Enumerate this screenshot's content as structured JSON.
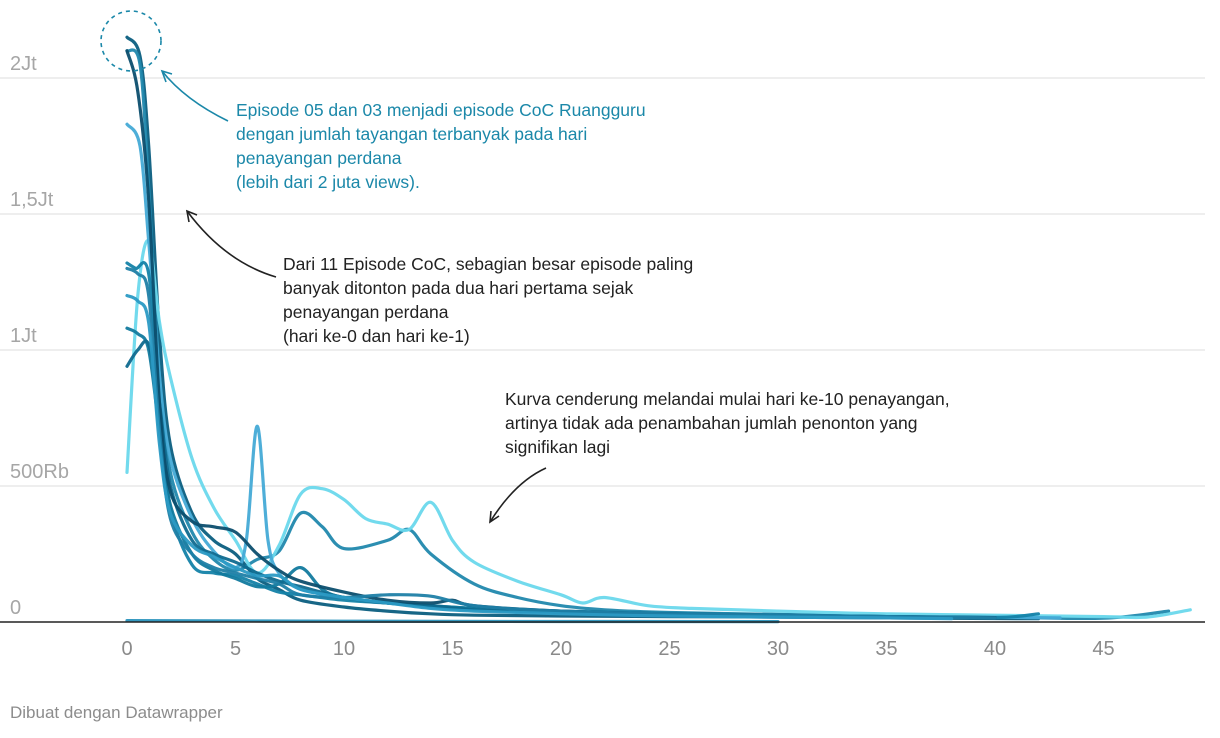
{
  "chart_data": {
    "type": "line",
    "title": "",
    "xlabel": "",
    "ylabel": "",
    "xlim": [
      0,
      49
    ],
    "ylim": [
      0,
      2000000
    ],
    "grid": true,
    "x_ticks": [
      0,
      5,
      10,
      15,
      20,
      25,
      30,
      35,
      40,
      45
    ],
    "y_ticks": [
      {
        "value": 0,
        "label": "0"
      },
      {
        "value": 500000,
        "label": "500Rb"
      },
      {
        "value": 1000000,
        "label": "1Jt"
      },
      {
        "value": 1500000,
        "label": "1,5Jt"
      },
      {
        "value": 2000000,
        "label": "2Jt"
      }
    ],
    "series": [
      {
        "color": "#0b5e80",
        "points": [
          [
            0,
            2150000
          ],
          [
            0.6,
            2080000
          ],
          [
            1,
            1750000
          ],
          [
            1.5,
            1050000
          ],
          [
            2,
            650000
          ],
          [
            3,
            400000
          ],
          [
            4,
            300000
          ],
          [
            5,
            250000
          ],
          [
            6,
            160000
          ],
          [
            7,
            120000
          ],
          [
            8,
            80000
          ],
          [
            10,
            55000
          ],
          [
            12,
            40000
          ],
          [
            14,
            30000
          ],
          [
            16,
            25000
          ],
          [
            20,
            22000
          ],
          [
            25,
            20000
          ],
          [
            30,
            18000
          ],
          [
            35,
            15000
          ],
          [
            40,
            13000
          ],
          [
            42,
            12000
          ]
        ]
      },
      {
        "color": "#2188ad",
        "points": [
          [
            0,
            2100000
          ],
          [
            0.6,
            2050000
          ],
          [
            1,
            1600000
          ],
          [
            1.5,
            900000
          ],
          [
            2,
            550000
          ],
          [
            3,
            330000
          ],
          [
            4,
            230000
          ],
          [
            5,
            190000
          ],
          [
            6,
            230000
          ],
          [
            7,
            260000
          ],
          [
            8,
            400000
          ],
          [
            9,
            350000
          ],
          [
            10,
            270000
          ],
          [
            12,
            300000
          ],
          [
            13,
            340000
          ],
          [
            14,
            250000
          ],
          [
            16,
            140000
          ],
          [
            18,
            90000
          ],
          [
            20,
            60000
          ],
          [
            22,
            45000
          ],
          [
            25,
            35000
          ],
          [
            30,
            28000
          ],
          [
            35,
            22000
          ],
          [
            40,
            18000
          ],
          [
            45,
            14000
          ],
          [
            48,
            40000
          ]
        ]
      },
      {
        "color": "#6ad8ec",
        "points": [
          [
            0,
            550000
          ],
          [
            0.5,
            1200000
          ],
          [
            1,
            1400000
          ],
          [
            1.5,
            1100000
          ],
          [
            2,
            900000
          ],
          [
            3,
            600000
          ],
          [
            4,
            420000
          ],
          [
            5,
            300000
          ],
          [
            6,
            180000
          ],
          [
            7,
            280000
          ],
          [
            8,
            470000
          ],
          [
            9,
            490000
          ],
          [
            10,
            450000
          ],
          [
            11,
            380000
          ],
          [
            12,
            360000
          ],
          [
            13,
            340000
          ],
          [
            14,
            440000
          ],
          [
            15,
            300000
          ],
          [
            16,
            220000
          ],
          [
            18,
            150000
          ],
          [
            20,
            100000
          ],
          [
            21,
            70000
          ],
          [
            22,
            90000
          ],
          [
            24,
            60000
          ],
          [
            26,
            50000
          ],
          [
            30,
            40000
          ],
          [
            35,
            30000
          ],
          [
            40,
            25000
          ],
          [
            45,
            20000
          ],
          [
            47,
            18000
          ],
          [
            49,
            45000
          ]
        ]
      },
      {
        "color": "#45aad6",
        "points": [
          [
            0,
            1830000
          ],
          [
            0.6,
            1750000
          ],
          [
            1,
            1400000
          ],
          [
            1.5,
            900000
          ],
          [
            2,
            600000
          ],
          [
            3,
            380000
          ],
          [
            4,
            260000
          ],
          [
            5,
            200000
          ],
          [
            5.5,
            300000
          ],
          [
            6,
            720000
          ],
          [
            6.5,
            300000
          ],
          [
            7,
            180000
          ],
          [
            8,
            120000
          ],
          [
            10,
            90000
          ],
          [
            12,
            70000
          ],
          [
            14,
            55000
          ],
          [
            16,
            45000
          ],
          [
            20,
            35000
          ],
          [
            25,
            30000
          ],
          [
            30,
            25000
          ],
          [
            35,
            20000
          ],
          [
            40,
            18000
          ],
          [
            43,
            15000
          ]
        ]
      },
      {
        "color": "#1482a8",
        "points": [
          [
            0,
            1320000
          ],
          [
            0.4,
            1300000
          ],
          [
            1,
            1280000
          ],
          [
            1.5,
            800000
          ],
          [
            2,
            420000
          ],
          [
            3,
            210000
          ],
          [
            4,
            180000
          ],
          [
            5,
            170000
          ],
          [
            6,
            140000
          ],
          [
            7,
            110000
          ],
          [
            8,
            100000
          ],
          [
            10,
            80000
          ],
          [
            12,
            70000
          ],
          [
            14,
            60000
          ],
          [
            16,
            50000
          ],
          [
            20,
            40000
          ],
          [
            25,
            32000
          ],
          [
            30,
            26000
          ],
          [
            35,
            20000
          ],
          [
            40,
            16000
          ],
          [
            42,
            30000
          ]
        ]
      },
      {
        "color": "#127a9e",
        "points": [
          [
            0,
            1080000
          ],
          [
            0.5,
            1060000
          ],
          [
            1,
            1000000
          ],
          [
            1.5,
            700000
          ],
          [
            2,
            430000
          ],
          [
            3,
            250000
          ],
          [
            4,
            190000
          ],
          [
            5,
            160000
          ],
          [
            6,
            130000
          ],
          [
            7,
            140000
          ],
          [
            8,
            200000
          ],
          [
            9,
            120000
          ],
          [
            10,
            90000
          ],
          [
            12,
            70000
          ],
          [
            14,
            60000
          ],
          [
            16,
            50000
          ],
          [
            20,
            38000
          ],
          [
            25,
            30000
          ],
          [
            30,
            24000
          ],
          [
            35,
            20000
          ],
          [
            40,
            16000
          ]
        ]
      },
      {
        "color": "#0f6a8f",
        "points": [
          [
            0,
            940000
          ],
          [
            0.5,
            1000000
          ],
          [
            1,
            1020000
          ],
          [
            1.5,
            800000
          ],
          [
            2,
            500000
          ],
          [
            3,
            300000
          ],
          [
            4,
            250000
          ],
          [
            5,
            220000
          ],
          [
            6,
            180000
          ],
          [
            7,
            150000
          ],
          [
            8,
            130000
          ],
          [
            10,
            90000
          ],
          [
            12,
            70000
          ],
          [
            14,
            60000
          ],
          [
            16,
            45000
          ],
          [
            20,
            36000
          ],
          [
            25,
            28000
          ],
          [
            30,
            22000
          ],
          [
            35,
            18000
          ],
          [
            40,
            15000
          ]
        ]
      },
      {
        "color": "#0c4e6e",
        "points": [
          [
            0,
            2100000
          ],
          [
            0.5,
            1950000
          ],
          [
            1,
            1550000
          ],
          [
            1.5,
            800000
          ],
          [
            2,
            480000
          ],
          [
            3,
            370000
          ],
          [
            4,
            350000
          ],
          [
            5,
            330000
          ],
          [
            6,
            250000
          ],
          [
            7,
            190000
          ],
          [
            8,
            150000
          ],
          [
            10,
            110000
          ],
          [
            12,
            80000
          ],
          [
            14,
            70000
          ],
          [
            15,
            80000
          ],
          [
            16,
            60000
          ],
          [
            20,
            40000
          ],
          [
            25,
            30000
          ],
          [
            30,
            25000
          ],
          [
            35,
            20000
          ],
          [
            40,
            16000
          ]
        ]
      },
      {
        "color": "#1f7fa6",
        "points": [
          [
            0,
            1300000
          ],
          [
            0.5,
            1280000
          ],
          [
            1,
            1200000
          ],
          [
            1.5,
            700000
          ],
          [
            2,
            380000
          ],
          [
            3,
            250000
          ],
          [
            4,
            200000
          ],
          [
            5,
            180000
          ],
          [
            6,
            160000
          ],
          [
            7,
            140000
          ],
          [
            8,
            100000
          ],
          [
            10,
            90000
          ],
          [
            12,
            100000
          ],
          [
            14,
            95000
          ],
          [
            16,
            60000
          ],
          [
            20,
            40000
          ],
          [
            25,
            30000
          ],
          [
            30,
            25000
          ],
          [
            35,
            20000
          ],
          [
            40,
            15000
          ]
        ]
      },
      {
        "color": "#2b9ac4",
        "points": [
          [
            0,
            1200000
          ],
          [
            0.5,
            1180000
          ],
          [
            1,
            1100000
          ],
          [
            1.5,
            650000
          ],
          [
            2,
            400000
          ],
          [
            3,
            280000
          ],
          [
            4,
            240000
          ],
          [
            5,
            200000
          ],
          [
            6,
            170000
          ],
          [
            7,
            170000
          ],
          [
            8,
            120000
          ],
          [
            10,
            90000
          ],
          [
            12,
            70000
          ],
          [
            14,
            50000
          ],
          [
            16,
            40000
          ],
          [
            20,
            30000
          ],
          [
            25,
            22000
          ],
          [
            30,
            18000
          ],
          [
            35,
            15000
          ],
          [
            38,
            12000
          ]
        ]
      },
      {
        "color": "#2a93bd",
        "points": [
          [
            0,
            5000
          ],
          [
            10,
            3000
          ],
          [
            20,
            2000
          ],
          [
            30,
            1500
          ]
        ]
      }
    ],
    "annotations": [
      {
        "color": "#1b88a9",
        "lines": [
          "Episode 05 dan 03 menjadi episode CoC Ruangguru",
          "dengan jumlah tayangan terbanyak pada hari",
          "penayangan perdana",
          "(lebih dari 2 juta views)."
        ]
      },
      {
        "color": "#222222",
        "lines": [
          "Dari 11 Episode CoC, sebagian besar episode paling",
          "banyak ditonton pada dua hari pertama sejak",
          "penayangan perdana",
          "(hari ke-0 dan hari ke-1)"
        ]
      },
      {
        "color": "#222222",
        "lines": [
          "Kurva cenderung melandai mulai hari ke-10 penayangan,",
          "artinya tidak ada penambahan jumlah penonton yang",
          "signifikan lagi"
        ]
      }
    ]
  },
  "footer": "Dibuat dengan Datawrapper"
}
